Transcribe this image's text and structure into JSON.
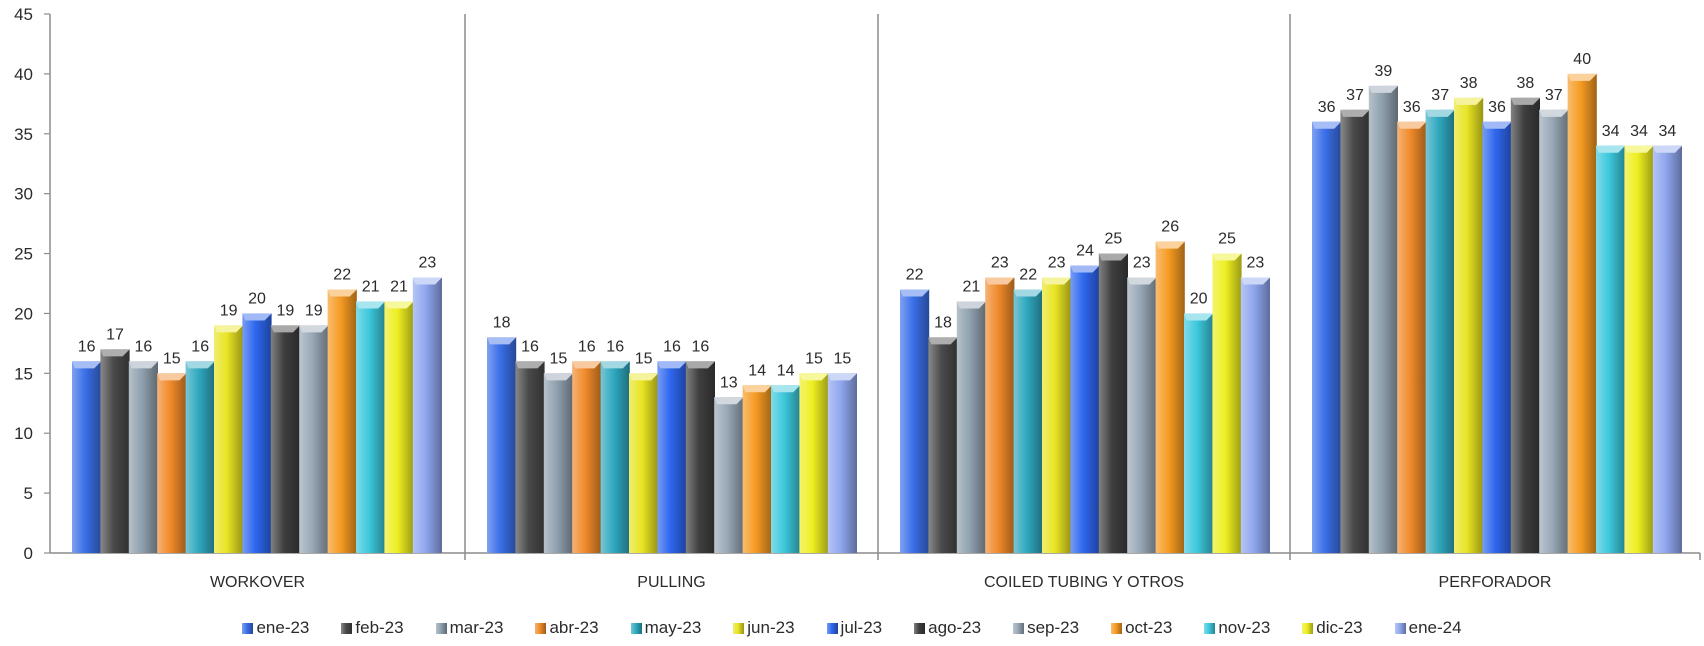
{
  "chart_data": {
    "type": "bar",
    "title": "",
    "xlabel": "",
    "ylabel": "",
    "ylim": [
      0,
      45
    ],
    "yticks": [
      0,
      5,
      10,
      15,
      20,
      25,
      30,
      35,
      40,
      45
    ],
    "grid": false,
    "legend_position": "bottom",
    "categories": [
      "WORKOVER",
      "PULLING",
      "COILED TUBING Y OTROS",
      "PERFORADOR"
    ],
    "series": [
      {
        "name": "ene-23",
        "color": "#3a6fe8",
        "values": [
          16,
          18,
          22,
          36
        ]
      },
      {
        "name": "feb-23",
        "color": "#4a4a4a",
        "values": [
          17,
          16,
          18,
          37
        ]
      },
      {
        "name": "mar-23",
        "color": "#8fa0ae",
        "values": [
          16,
          15,
          21,
          39
        ]
      },
      {
        "name": "abr-23",
        "color": "#f08a2a",
        "values": [
          15,
          16,
          23,
          36
        ]
      },
      {
        "name": "may-23",
        "color": "#2fa8bf",
        "values": [
          16,
          16,
          22,
          37
        ]
      },
      {
        "name": "jun-23",
        "color": "#e8e422",
        "values": [
          19,
          15,
          23,
          38
        ]
      },
      {
        "name": "jul-23",
        "color": "#2e66ee",
        "values": [
          20,
          16,
          24,
          36
        ]
      },
      {
        "name": "ago-23",
        "color": "#3f3f3f",
        "values": [
          19,
          16,
          25,
          38
        ]
      },
      {
        "name": "sep-23",
        "color": "#98a8b6",
        "values": [
          19,
          13,
          23,
          37
        ]
      },
      {
        "name": "oct-23",
        "color": "#f59a22",
        "values": [
          22,
          14,
          26,
          40
        ]
      },
      {
        "name": "nov-23",
        "color": "#3cc8dc",
        "values": [
          21,
          14,
          20,
          34
        ]
      },
      {
        "name": "dic-23",
        "color": "#eeee20",
        "values": [
          21,
          15,
          25,
          34
        ]
      },
      {
        "name": "ene-24",
        "color": "#8fa6ee",
        "values": [
          23,
          15,
          23,
          34
        ]
      }
    ]
  }
}
